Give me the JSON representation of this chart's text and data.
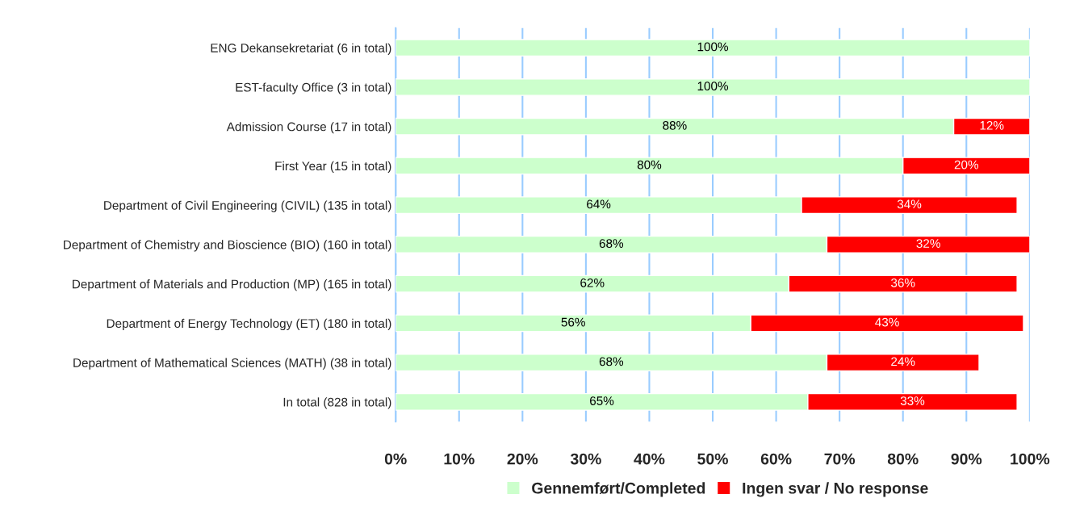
{
  "chart_data": {
    "type": "bar",
    "orientation": "horizontal",
    "stacked": true,
    "categories": [
      "ENG Dekansekretariat (6 in total)",
      "EST-faculty Office (3 in total)",
      "Admission Course (17 in total)",
      "First Year (15 in total)",
      "Department of Civil Engineering (CIVIL) (135 in total)",
      "Department of Chemistry and Bioscience (BIO) (160 in total)",
      "Department of Materials and Production (MP) (165 in total)",
      "Department of Energy Technology (ET) (180 in total)",
      "Department of Mathematical Sciences (MATH) (38 in total)",
      "In total (828 in total)"
    ],
    "series": [
      {
        "name": "Gennemført/Completed",
        "color": "#ccffcc",
        "values": [
          100,
          100,
          88,
          80,
          64,
          68,
          62,
          56,
          68,
          65
        ],
        "value_labels": [
          "100%",
          "100%",
          "88%",
          "80%",
          "64%",
          "68%",
          "62%",
          "56%",
          "68%",
          "65%"
        ]
      },
      {
        "name": "Ingen svar / No response",
        "color": "#ff0000",
        "values": [
          null,
          null,
          12,
          20,
          34,
          32,
          36,
          43,
          24,
          33
        ],
        "value_labels": [
          null,
          null,
          "12%",
          "20%",
          "34%",
          "32%",
          "36%",
          "43%",
          "24%",
          "33%"
        ]
      }
    ],
    "xlim": [
      0,
      100
    ],
    "xticks": [
      {
        "value": 0,
        "label": "0%"
      },
      {
        "value": 10,
        "label": "10%"
      },
      {
        "value": 20,
        "label": "20%"
      },
      {
        "value": 30,
        "label": "30%"
      },
      {
        "value": 40,
        "label": "40%"
      },
      {
        "value": 50,
        "label": "50%"
      },
      {
        "value": 60,
        "label": "60%"
      },
      {
        "value": 70,
        "label": "70%"
      },
      {
        "value": 80,
        "label": "80%"
      },
      {
        "value": 90,
        "label": "90%"
      },
      {
        "value": 100,
        "label": "100%"
      }
    ],
    "grid": "x",
    "legend": "bottom"
  }
}
